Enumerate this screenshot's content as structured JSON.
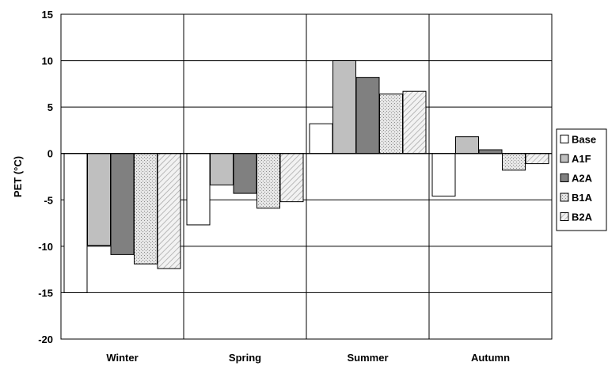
{
  "chart_data": {
    "type": "bar",
    "title": "",
    "xlabel": "",
    "ylabel": "PET  (°C)",
    "ylim": [
      -20,
      15
    ],
    "yticks": [
      15,
      10,
      5,
      0,
      -5,
      -10,
      -15,
      -20
    ],
    "grid": true,
    "legend_position": "right",
    "categories": [
      "Winter",
      "Spring",
      "Summer",
      "Autumn"
    ],
    "series": [
      {
        "name": "Base",
        "values": [
          -15.0,
          -7.7,
          3.2,
          -4.6
        ],
        "fill": "#ffffff",
        "pattern": "none"
      },
      {
        "name": "A1F",
        "values": [
          -9.9,
          -3.4,
          10.0,
          1.8
        ],
        "fill": "#bfbfbf",
        "pattern": "none"
      },
      {
        "name": "A2A",
        "values": [
          -10.9,
          -4.3,
          8.2,
          0.4
        ],
        "fill": "#808080",
        "pattern": "none"
      },
      {
        "name": "B1A",
        "values": [
          -11.9,
          -5.9,
          6.4,
          -1.8
        ],
        "fill": "#d9d9d9",
        "pattern": "dots"
      },
      {
        "name": "B2A",
        "values": [
          -12.4,
          -5.2,
          6.7,
          -1.1
        ],
        "fill": "#eeeeee",
        "pattern": "diagonal"
      }
    ]
  }
}
